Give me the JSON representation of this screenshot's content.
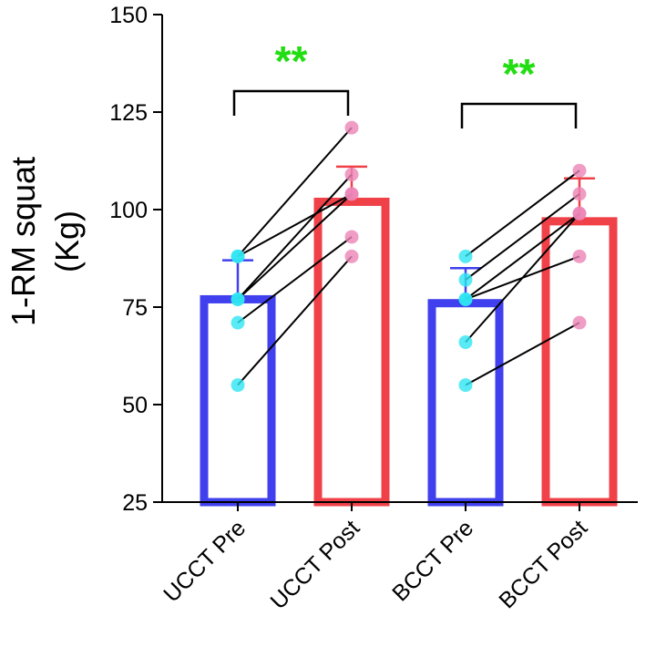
{
  "chart_data": {
    "type": "bar",
    "title": "",
    "ylabel_lines": [
      "1-RM squat",
      "(Kg)"
    ],
    "xlabel": "",
    "ylim": [
      25,
      150
    ],
    "yticks": [
      25,
      50,
      75,
      100,
      125,
      150
    ],
    "categories": [
      "UCCT Pre",
      "UCCT Post",
      "BCCT Pre",
      "BCCT Post"
    ],
    "means": [
      77,
      102,
      76,
      97
    ],
    "sd_upper": [
      87,
      111,
      85,
      108
    ],
    "bar_colors": [
      "#4040ee",
      "#f04048",
      "#4040ee",
      "#f04048"
    ],
    "point_colors": [
      "#2ee6f2",
      "#ec84b6",
      "#2ee6f2",
      "#ec84b6"
    ],
    "paired_lines": [
      {
        "pre_category": 0,
        "post_category": 1,
        "pairs": [
          [
            55,
            88
          ],
          [
            71,
            93
          ],
          [
            77,
            104
          ],
          [
            77,
            109
          ],
          [
            88,
            104
          ],
          [
            88,
            121
          ]
        ]
      },
      {
        "pre_category": 2,
        "post_category": 3,
        "pairs": [
          [
            55,
            71
          ],
          [
            66,
            99
          ],
          [
            77,
            88
          ],
          [
            77,
            99
          ],
          [
            82,
            104
          ],
          [
            88,
            110
          ]
        ]
      }
    ],
    "significance": [
      {
        "from_category": 0,
        "to_category": 1,
        "label": "**"
      },
      {
        "from_category": 2,
        "to_category": 3,
        "label": "**"
      }
    ]
  }
}
